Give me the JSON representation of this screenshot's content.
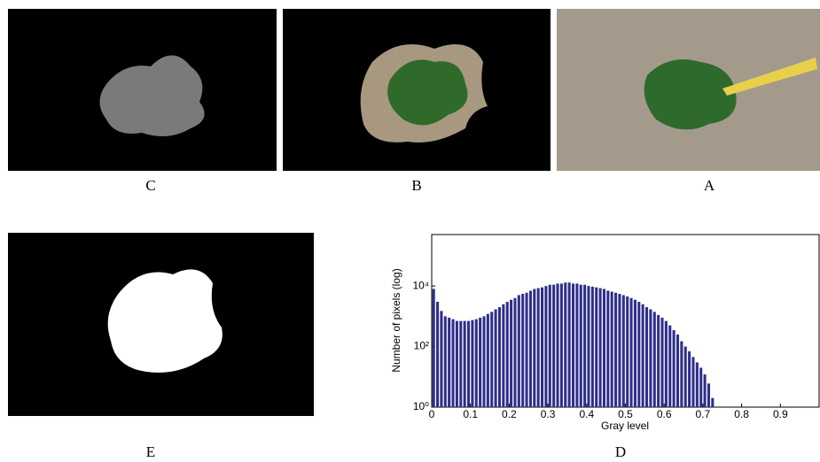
{
  "panel_labels": [
    "C",
    "B",
    "A",
    "E",
    "D"
  ],
  "chart_data": {
    "type": "histogram",
    "xlabel": "Gray level",
    "ylabel": "Number of pixels (log)",
    "bins": [
      0,
      0.01,
      0.02,
      0.03,
      0.04,
      0.05,
      0.06,
      0.07,
      0.08,
      0.09,
      0.1,
      0.11,
      0.12,
      0.13,
      0.14,
      0.15,
      0.16,
      0.17,
      0.18,
      0.19,
      0.2,
      0.21,
      0.22,
      0.23,
      0.24,
      0.25,
      0.26,
      0.27,
      0.28,
      0.29,
      0.3,
      0.31,
      0.32,
      0.33,
      0.34,
      0.35,
      0.36,
      0.37,
      0.38,
      0.39,
      0.4,
      0.41,
      0.42,
      0.43,
      0.44,
      0.45,
      0.46,
      0.47,
      0.48,
      0.49,
      0.5,
      0.51,
      0.52,
      0.53,
      0.54,
      0.55,
      0.56,
      0.57,
      0.58,
      0.59,
      0.6,
      0.61,
      0.62,
      0.63,
      0.64,
      0.65,
      0.66,
      0.67,
      0.68,
      0.69,
      0.7,
      0.71,
      0.72,
      0.73
    ],
    "values": [
      8000,
      3000,
      1500,
      1000,
      900,
      800,
      700,
      700,
      700,
      700,
      750,
      800,
      900,
      1000,
      1200,
      1400,
      1700,
      2000,
      2500,
      3000,
      3500,
      4000,
      5000,
      5500,
      6000,
      7000,
      8000,
      8500,
      9000,
      10000,
      11000,
      11000,
      12000,
      12000,
      13000,
      13000,
      12000,
      12000,
      11000,
      11000,
      10000,
      9500,
      9000,
      8500,
      8000,
      7000,
      6500,
      6000,
      5500,
      5000,
      4500,
      4000,
      3500,
      3000,
      2500,
      2000,
      1700,
      1400,
      1100,
      900,
      700,
      500,
      350,
      250,
      150,
      100,
      70,
      45,
      30,
      20,
      12,
      6,
      2
    ],
    "color": "#2e2e8a",
    "xlim": [
      0,
      1
    ],
    "ylim": [
      1,
      500000
    ],
    "log_y": true,
    "xticks": [
      0,
      0.1,
      0.2,
      0.3,
      0.4,
      0.5,
      0.6,
      0.7,
      0.8,
      0.9
    ],
    "yticks": [
      {
        "value": 1,
        "label": "10⁰"
      },
      {
        "value": 100,
        "label": "10²"
      },
      {
        "value": 10000,
        "label": "10⁴"
      }
    ]
  }
}
